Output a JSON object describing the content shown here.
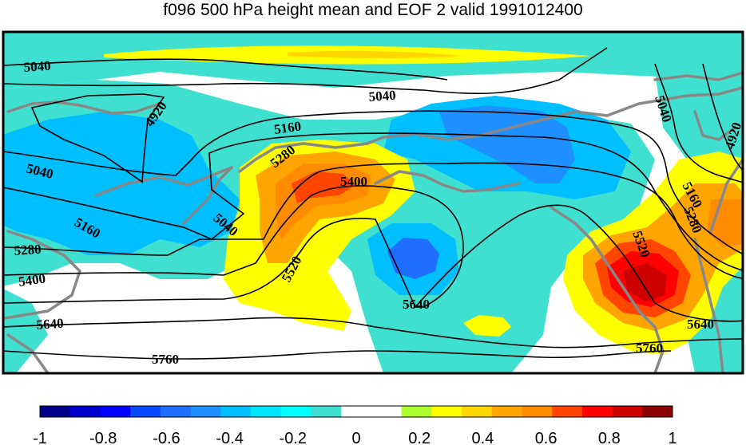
{
  "title": "f096 500 hPa height mean and EOF 2 valid 1991012400",
  "contour_labels": [
    {
      "id": "c1",
      "text": "5040"
    },
    {
      "id": "c2",
      "text": "4920"
    },
    {
      "id": "c3",
      "text": "5040"
    },
    {
      "id": "c4",
      "text": "5160"
    },
    {
      "id": "c5",
      "text": "5280"
    },
    {
      "id": "c6",
      "text": "5400"
    },
    {
      "id": "c7",
      "text": "5040"
    },
    {
      "id": "c8",
      "text": "5040"
    },
    {
      "id": "c9",
      "text": "5160"
    },
    {
      "id": "c10",
      "text": "5280"
    },
    {
      "id": "c11",
      "text": "5400"
    },
    {
      "id": "c12",
      "text": "5520"
    },
    {
      "id": "c13",
      "text": "5640"
    },
    {
      "id": "c14",
      "text": "5640"
    },
    {
      "id": "c15",
      "text": "5760"
    },
    {
      "id": "c16",
      "text": "5040"
    },
    {
      "id": "c17",
      "text": "4920"
    },
    {
      "id": "c18",
      "text": "5160"
    },
    {
      "id": "c19",
      "text": "5280"
    },
    {
      "id": "c20",
      "text": "5520"
    },
    {
      "id": "c21",
      "text": "5640"
    },
    {
      "id": "c22",
      "text": "5760"
    }
  ],
  "colorbar": {
    "colors": [
      "#00008b",
      "#0000cd",
      "#0000ff",
      "#0a4aff",
      "#1e6eff",
      "#1e90ff",
      "#00bfff",
      "#00e5ff",
      "#00ffff",
      "#40e0d0",
      "#ffffff",
      "#ffffff",
      "#adff2f",
      "#ffff00",
      "#ffd700",
      "#ffa500",
      "#ff8c00",
      "#ff4500",
      "#ff0000",
      "#cd0000",
      "#8b0000"
    ],
    "tick_labels": [
      "-1",
      "-0.8",
      "-0.6",
      "-0.4",
      "-0.2",
      "0",
      "0.2",
      "0.4",
      "0.6",
      "0.8",
      "1"
    ]
  }
}
